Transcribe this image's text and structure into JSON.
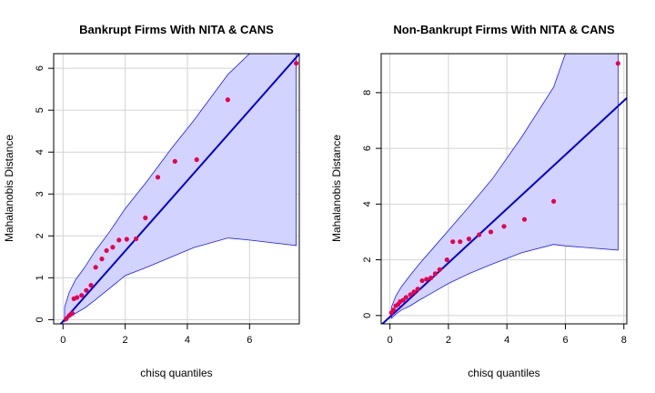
{
  "chart_data": [
    {
      "type": "scatter",
      "title": "Bankrupt Firms With  NITA & CANS",
      "xlabel": "chisq quantiles",
      "ylabel": "Mahalanobis Distance",
      "xlim": [
        -0.3,
        7.6
      ],
      "ylim": [
        -0.1,
        6.35
      ],
      "xticks": [
        0,
        2,
        4,
        6
      ],
      "yticks": [
        0,
        1,
        2,
        3,
        4,
        5,
        6
      ],
      "grid": true,
      "reference_line": {
        "intercept": -0.04,
        "slope": 0.84
      },
      "envelope": {
        "x": [
          0.05,
          0.2,
          0.4,
          0.7,
          1.0,
          1.5,
          2.0,
          2.7,
          3.5,
          4.2,
          5.3,
          6.0,
          7.5
        ],
        "upper": [
          0.3,
          0.65,
          0.95,
          1.25,
          1.6,
          2.1,
          2.65,
          3.3,
          4.1,
          4.75,
          5.85,
          6.35,
          6.35
        ],
        "lower": [
          -0.05,
          0.05,
          0.15,
          0.28,
          0.45,
          0.75,
          1.05,
          1.25,
          1.5,
          1.72,
          1.95,
          1.9,
          1.77
        ]
      },
      "points": {
        "x": [
          0.1,
          0.2,
          0.3,
          0.35,
          0.45,
          0.6,
          0.75,
          0.9,
          1.05,
          1.25,
          1.4,
          1.6,
          1.8,
          2.05,
          2.35,
          2.65,
          3.05,
          3.6,
          4.3,
          5.3,
          7.5
        ],
        "y": [
          0.02,
          0.1,
          0.15,
          0.5,
          0.53,
          0.58,
          0.7,
          0.82,
          1.25,
          1.45,
          1.65,
          1.73,
          1.9,
          1.92,
          1.93,
          2.43,
          3.4,
          3.78,
          3.82,
          5.25,
          6.12
        ]
      }
    },
    {
      "type": "scatter",
      "title": "Non-Bankrupt Firms With  NITA & CANS",
      "xlabel": "chisq quantiles",
      "ylabel": "Mahalanobis Distance",
      "xlim": [
        -0.3,
        8.1
      ],
      "ylim": [
        -0.3,
        9.4
      ],
      "xticks": [
        0,
        2,
        4,
        6,
        8
      ],
      "yticks": [
        0,
        2,
        4,
        6,
        8
      ],
      "grid": true,
      "reference_line": {
        "intercept": -0.05,
        "slope": 0.97
      },
      "envelope": {
        "x": [
          0.05,
          0.2,
          0.4,
          0.7,
          1.0,
          1.5,
          2.0,
          2.7,
          3.5,
          4.5,
          5.6,
          6.0,
          7.8
        ],
        "upper": [
          0.3,
          0.7,
          1.05,
          1.45,
          1.85,
          2.45,
          3.05,
          3.9,
          4.9,
          6.4,
          8.2,
          9.4,
          9.4
        ],
        "lower": [
          -0.1,
          0.05,
          0.2,
          0.35,
          0.55,
          0.85,
          1.15,
          1.5,
          1.85,
          2.25,
          2.55,
          2.5,
          2.35
        ]
      },
      "points": {
        "x": [
          0.05,
          0.12,
          0.2,
          0.28,
          0.35,
          0.45,
          0.55,
          0.7,
          0.82,
          0.95,
          1.1,
          1.25,
          1.4,
          1.55,
          1.7,
          1.95,
          2.15,
          2.4,
          2.7,
          3.05,
          3.45,
          3.9,
          4.6,
          5.6,
          7.8
        ],
        "y": [
          0.1,
          0.2,
          0.35,
          0.4,
          0.5,
          0.55,
          0.65,
          0.75,
          0.85,
          0.95,
          1.25,
          1.3,
          1.35,
          1.5,
          1.65,
          2.0,
          2.65,
          2.65,
          2.75,
          2.9,
          3.0,
          3.2,
          3.45,
          4.1,
          9.05
        ]
      }
    }
  ]
}
